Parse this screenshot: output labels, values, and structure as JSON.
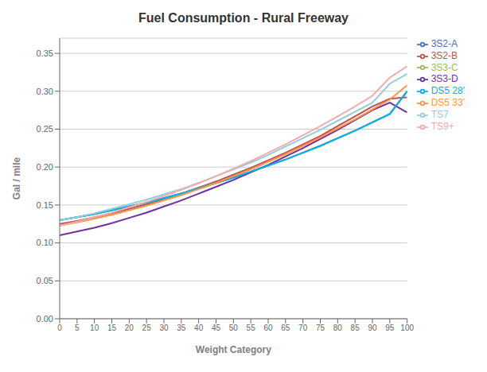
{
  "chart_data": {
    "type": "line",
    "title": "Fuel Consumption - Rural Freeway",
    "x_label": "Weight Category",
    "y_label": "Gal / mile",
    "x": [
      0,
      5,
      10,
      15,
      20,
      25,
      30,
      35,
      40,
      45,
      50,
      55,
      60,
      65,
      70,
      75,
      80,
      85,
      90,
      95,
      100
    ],
    "xlim": [
      0,
      100
    ],
    "xticks": [
      0,
      5,
      10,
      15,
      20,
      25,
      30,
      35,
      40,
      45,
      50,
      55,
      60,
      65,
      70,
      75,
      80,
      85,
      90,
      95,
      100
    ],
    "ylim": [
      0.0,
      0.37
    ],
    "yticks": [
      {
        "value": 0,
        "label": "0.00"
      },
      0.05,
      {
        "value": 0.1,
        "label": "0.10"
      },
      0.15,
      {
        "value": 0.2,
        "label": "0.20"
      },
      0.25,
      {
        "value": 0.3,
        "label": "0.30"
      },
      0.35
    ],
    "grid": true,
    "legend": "right",
    "series": [
      {
        "name": "3S2-A",
        "color": "#4472C4",
        "values": [
          0.13,
          0.134,
          0.138,
          0.143,
          0.148,
          0.153,
          0.159,
          0.165,
          0.172,
          0.179,
          0.186,
          0.194,
          0.202,
          0.21,
          0.219,
          0.228,
          0.238,
          0.248,
          0.259,
          0.27,
          0.3
        ]
      },
      {
        "name": "3S2-B",
        "color": "#C0504D",
        "values": [
          0.125,
          0.129,
          0.134,
          0.139,
          0.145,
          0.151,
          0.158,
          0.165,
          0.173,
          0.181,
          0.19,
          0.199,
          0.209,
          0.219,
          0.23,
          0.241,
          0.254,
          0.267,
          0.28,
          0.29,
          0.292
        ]
      },
      {
        "name": "3S3-C",
        "color": "#9BBB59",
        "values": [
          0.13,
          0.134,
          0.138,
          0.143,
          0.148,
          0.153,
          0.159,
          0.165,
          0.172,
          0.179,
          0.186,
          0.194,
          0.202,
          0.21,
          0.219,
          0.228,
          0.238,
          0.248,
          0.259,
          0.27,
          0.3
        ]
      },
      {
        "name": "3S3-D",
        "color": "#7030A0",
        "values": [
          0.11,
          0.115,
          0.12,
          0.126,
          0.133,
          0.14,
          0.148,
          0.156,
          0.165,
          0.174,
          0.183,
          0.193,
          0.203,
          0.214,
          0.225,
          0.237,
          0.249,
          0.262,
          0.275,
          0.285,
          0.272
        ]
      },
      {
        "name": "DS5 28'",
        "color": "#00B0F0",
        "values": [
          0.13,
          0.134,
          0.138,
          0.143,
          0.148,
          0.153,
          0.159,
          0.165,
          0.172,
          0.179,
          0.186,
          0.194,
          0.202,
          0.21,
          0.219,
          0.228,
          0.238,
          0.248,
          0.259,
          0.27,
          0.3
        ]
      },
      {
        "name": "DS5 33'",
        "color": "#F79646",
        "values": [
          0.123,
          0.127,
          0.132,
          0.137,
          0.143,
          0.149,
          0.156,
          0.163,
          0.171,
          0.179,
          0.188,
          0.197,
          0.207,
          0.217,
          0.228,
          0.239,
          0.251,
          0.263,
          0.276,
          0.289,
          0.308
        ]
      },
      {
        "name": "TS7",
        "color": "#92CDDC",
        "values": [
          0.13,
          0.134,
          0.139,
          0.145,
          0.151,
          0.157,
          0.164,
          0.171,
          0.179,
          0.188,
          0.197,
          0.206,
          0.216,
          0.227,
          0.238,
          0.249,
          0.261,
          0.273,
          0.285,
          0.31,
          0.323
        ]
      },
      {
        "name": "TS9+",
        "color": "#F2ACAC",
        "values": [
          0.123,
          0.128,
          0.134,
          0.14,
          0.147,
          0.154,
          0.162,
          0.17,
          0.179,
          0.188,
          0.198,
          0.208,
          0.219,
          0.23,
          0.242,
          0.254,
          0.267,
          0.28,
          0.294,
          0.318,
          0.333
        ]
      }
    ]
  }
}
